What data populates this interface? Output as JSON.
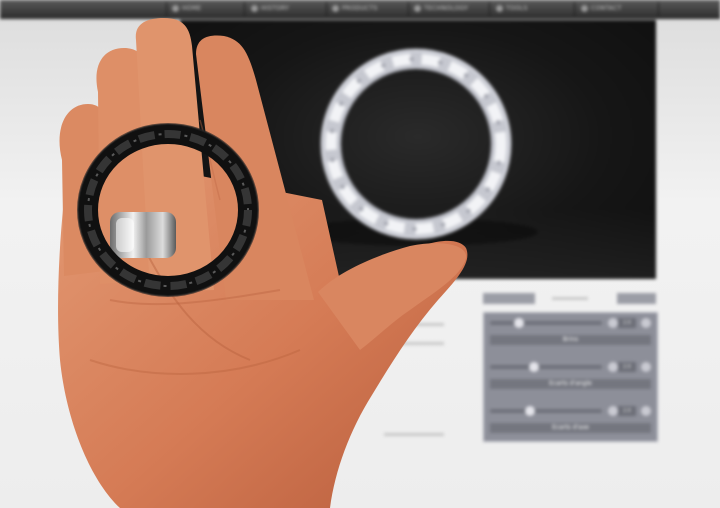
{
  "website": {
    "nav_items": [
      {
        "label": "Home",
        "icon": "home-icon"
      },
      {
        "label": "History",
        "icon": "history-icon"
      },
      {
        "label": "Products",
        "icon": "products-icon"
      },
      {
        "label": "Technology",
        "icon": "technology-icon"
      },
      {
        "label": "Tools",
        "icon": "tools-icon"
      },
      {
        "label": "Contact",
        "icon": "contact-icon"
      }
    ],
    "controls_panel": {
      "sliders": [
        {
          "value": "2.0",
          "label": "Brins",
          "level": 0.24
        },
        {
          "value": "2.0",
          "label": "Ecarts d'angle",
          "level": 0.38
        },
        {
          "value": "2.0",
          "label": "Ecarts d'axe",
          "level": 0.34
        }
      ]
    }
  },
  "colors": {
    "skin": "#d9805c",
    "printed_ring": "#1b1b1b",
    "rendered_ring": "#e6e8ef",
    "viewport_bg": "#141414",
    "panel": "#8d8f99"
  }
}
